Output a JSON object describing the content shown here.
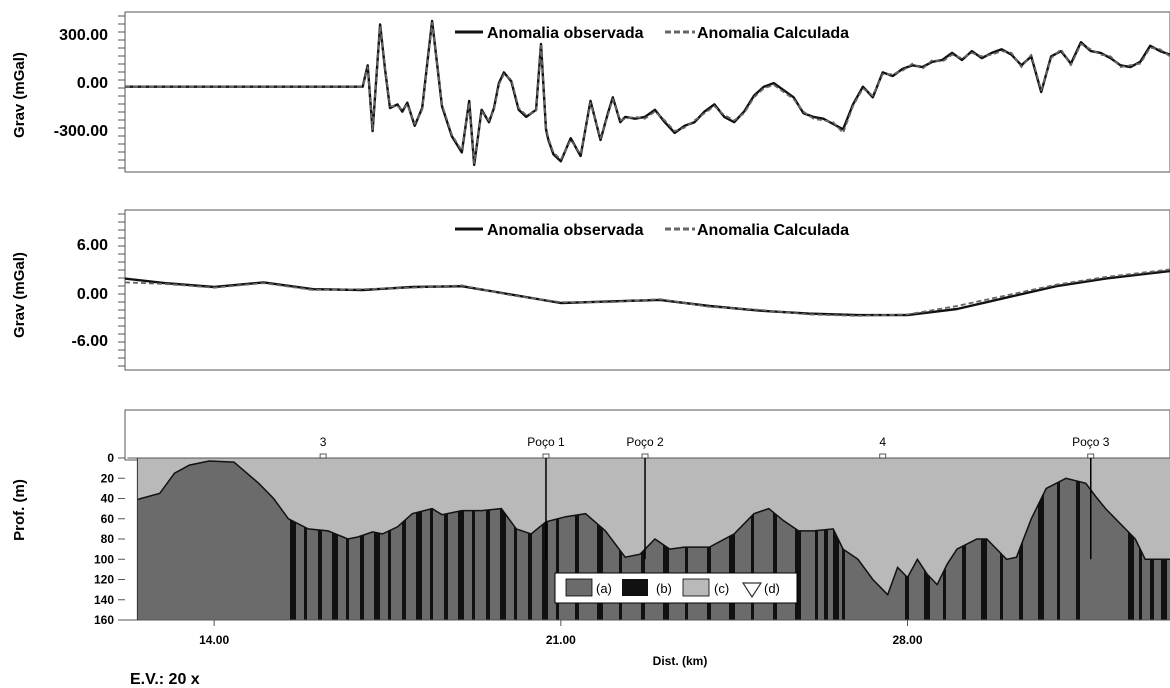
{
  "chart_data": [
    {
      "type": "line",
      "ylabel": "Grav (mGal)",
      "yticks": [
        "300.00",
        "0.00",
        "-300.00"
      ],
      "ylim": [
        -480,
        420
      ],
      "xlim": [
        12.2,
        33.3
      ],
      "series": [
        {
          "name": "Anomalia observada",
          "style": "solid",
          "color": "#111111",
          "x": [
            12.2,
            13,
            14,
            15,
            16,
            17.0,
            17.1,
            17.2,
            17.35,
            17.45,
            17.55,
            17.7,
            17.8,
            17.9,
            18.05,
            18.2,
            18.4,
            18.6,
            18.8,
            19.0,
            19.15,
            19.25,
            19.4,
            19.55,
            19.65,
            19.75,
            19.85,
            20.0,
            20.15,
            20.3,
            20.5,
            20.6,
            20.7,
            20.75,
            20.85,
            21.0,
            21.2,
            21.4,
            21.6,
            21.8,
            21.95,
            22.05,
            22.2,
            22.3,
            22.5,
            22.7,
            22.9,
            23.1,
            23.3,
            23.5,
            23.7,
            23.9,
            24.1,
            24.3,
            24.5,
            24.7,
            24.9,
            25.1,
            25.3,
            25.5,
            25.7,
            25.9,
            26.1,
            26.3,
            26.5,
            26.7,
            26.9,
            27.1,
            27.3,
            27.5,
            27.7,
            27.9,
            28.1,
            28.3,
            28.5,
            28.7,
            28.9,
            29.1,
            29.3,
            29.5,
            29.7,
            29.9,
            30.1,
            30.3,
            30.5,
            30.7,
            30.9,
            31.1,
            31.3,
            31.5,
            31.7,
            31.9,
            32.1,
            32.3,
            32.5,
            32.7,
            32.9,
            33.1,
            33.3
          ],
          "values": [
            0,
            0,
            0,
            0,
            0,
            0,
            120,
            -250,
            350,
            100,
            -120,
            -100,
            -140,
            -90,
            -220,
            -120,
            370,
            -110,
            -280,
            -370,
            -80,
            -440,
            -130,
            -200,
            -120,
            20,
            80,
            30,
            -130,
            -170,
            -130,
            240,
            -240,
            -300,
            -380,
            -420,
            -290,
            -390,
            -80,
            -300,
            -150,
            -60,
            -200,
            -170,
            -180,
            -170,
            -130,
            -200,
            -260,
            -220,
            -200,
            -140,
            -100,
            -170,
            -200,
            -140,
            -50,
            0,
            20,
            -20,
            -60,
            -150,
            -170,
            -180,
            -210,
            -240,
            -100,
            0,
            -60,
            80,
            60,
            100,
            120,
            110,
            140,
            150,
            190,
            150,
            200,
            160,
            190,
            210,
            180,
            120,
            170,
            -30,
            170,
            200,
            130,
            250,
            200,
            190,
            160,
            120,
            110,
            140,
            230,
            200,
            180
          ]
        },
        {
          "name": "Anomalia Calculada",
          "style": "dashed",
          "color": "#666666",
          "x": [
            12.2,
            13,
            14,
            15,
            16,
            17.0,
            17.1,
            17.2,
            17.35,
            17.45,
            17.55,
            17.7,
            17.8,
            17.9,
            18.05,
            18.2,
            18.4,
            18.6,
            18.8,
            19.0,
            19.15,
            19.25,
            19.4,
            19.55,
            19.65,
            19.75,
            19.85,
            20.0,
            20.15,
            20.3,
            20.5,
            20.6,
            20.7,
            20.75,
            20.85,
            21.0,
            21.2,
            21.4,
            21.6,
            21.8,
            21.95,
            22.05,
            22.2,
            22.3,
            22.5,
            22.7,
            22.9,
            23.1,
            23.3,
            23.5,
            23.7,
            23.9,
            24.1,
            24.3,
            24.5,
            24.7,
            24.9,
            25.1,
            25.3,
            25.5,
            25.7,
            25.9,
            26.1,
            26.3,
            26.5,
            26.7,
            26.9,
            27.1,
            27.3,
            27.5,
            27.7,
            27.9,
            28.1,
            28.3,
            28.5,
            28.7,
            28.9,
            29.1,
            29.3,
            29.5,
            29.7,
            29.9,
            30.1,
            30.3,
            30.5,
            30.7,
            30.9,
            31.1,
            31.3,
            31.5,
            31.7,
            31.9,
            32.1,
            32.3,
            32.5,
            32.7,
            32.9,
            33.1,
            33.3
          ],
          "values": [
            0,
            0,
            0,
            0,
            0,
            0,
            110,
            -240,
            340,
            110,
            -110,
            -110,
            -130,
            -100,
            -210,
            -130,
            360,
            -100,
            -270,
            -360,
            -90,
            -430,
            -140,
            -190,
            -130,
            10,
            70,
            40,
            -120,
            -160,
            -140,
            230,
            -230,
            -290,
            -370,
            -410,
            -300,
            -380,
            -90,
            -290,
            -160,
            -70,
            -190,
            -180,
            -170,
            -180,
            -140,
            -190,
            -250,
            -230,
            -190,
            -150,
            -110,
            -160,
            -190,
            -150,
            -60,
            -10,
            10,
            -30,
            -70,
            -140,
            -180,
            -190,
            -200,
            -260,
            -110,
            -10,
            -50,
            70,
            70,
            90,
            130,
            100,
            150,
            140,
            180,
            160,
            190,
            170,
            180,
            200,
            190,
            110,
            180,
            -20,
            160,
            210,
            120,
            240,
            210,
            180,
            170,
            110,
            120,
            130,
            220,
            210,
            170
          ]
        }
      ]
    },
    {
      "type": "line",
      "ylabel": "Grav (mGal)",
      "yticks": [
        "6.00",
        "0.00",
        "-6.00"
      ],
      "ylim": [
        -11,
        10
      ],
      "xlim": [
        12.2,
        33.3
      ],
      "series": [
        {
          "name": "Anomalia observada",
          "style": "solid",
          "color": "#111111",
          "x": [
            12.2,
            13,
            14,
            15,
            16,
            17,
            18,
            19,
            20,
            21,
            22,
            23,
            24,
            25,
            26,
            27,
            28,
            29,
            30,
            31,
            32,
            33.3
          ],
          "values": [
            1.0,
            0.4,
            -0.1,
            0.5,
            -0.4,
            -0.5,
            -0.1,
            0.0,
            -1.1,
            -2.2,
            -2.0,
            -1.8,
            -2.6,
            -3.2,
            -3.6,
            -3.8,
            -3.8,
            -3.0,
            -1.5,
            0.0,
            1.0,
            2.0
          ]
        },
        {
          "name": "Anomalia Calculada",
          "style": "dashed",
          "color": "#666666",
          "x": [
            12.2,
            13,
            14,
            15,
            16,
            17,
            18,
            19,
            20,
            21,
            22,
            23,
            24,
            25,
            26,
            27,
            28,
            29,
            30,
            31,
            32,
            33.3
          ],
          "values": [
            0.5,
            0.3,
            -0.2,
            0.4,
            -0.5,
            -0.4,
            -0.2,
            0.1,
            -1.2,
            -2.1,
            -2.1,
            -1.7,
            -2.7,
            -3.1,
            -3.7,
            -3.9,
            -3.7,
            -2.6,
            -1.2,
            0.2,
            1.2,
            2.2
          ]
        }
      ]
    },
    {
      "type": "area",
      "xlabel": "Dist. (km)",
      "ylabel": "Prof. (m)",
      "xticks": [
        "14.00",
        "21.00",
        "28.00"
      ],
      "xtick_values": [
        14,
        21,
        28
      ],
      "yticks": [
        "0",
        "20",
        "40",
        "60",
        "80",
        "100",
        "120",
        "140",
        "160"
      ],
      "ylim": [
        160,
        0
      ],
      "xlim": [
        12.2,
        33.3
      ],
      "wells": [
        {
          "label": "3",
          "x": 16.2
        },
        {
          "label": "Poço 1",
          "x": 20.7,
          "depth": 100
        },
        {
          "label": "Poço 2",
          "x": 22.7,
          "depth": 100
        },
        {
          "label": "4",
          "x": 27.5
        },
        {
          "label": "Poço 3",
          "x": 31.7,
          "depth": 100
        }
      ],
      "basement_profile": {
        "x": [
          12.45,
          12.9,
          13.2,
          13.5,
          13.9,
          14.4,
          14.9,
          15.2,
          15.5,
          15.9,
          16.3,
          16.7,
          16.9,
          17.2,
          17.4,
          17.7,
          18.0,
          18.4,
          18.6,
          19.0,
          19.4,
          19.8,
          20.1,
          20.4,
          20.7,
          21.1,
          21.5,
          21.9,
          22.3,
          22.6,
          22.9,
          23.2,
          23.5,
          24.0,
          24.5,
          24.9,
          25.2,
          25.5,
          25.8,
          26.1,
          26.5,
          26.7,
          27.0,
          27.3,
          27.6,
          27.8,
          28.0,
          28.2,
          28.4,
          28.6,
          28.8,
          29.0,
          29.2,
          29.4,
          29.6,
          29.8,
          30.0,
          30.2,
          30.5,
          30.8,
          31.2,
          31.6,
          31.8,
          32.0,
          32.2,
          32.4,
          32.6,
          32.8
        ],
        "values": [
          41,
          35,
          15,
          7,
          3,
          4,
          25,
          40,
          60,
          70,
          72,
          80,
          78,
          73,
          75,
          68,
          55,
          50,
          56,
          52,
          52,
          50,
          70,
          75,
          63,
          58,
          55,
          72,
          98,
          95,
          80,
          90,
          88,
          88,
          75,
          55,
          50,
          62,
          72,
          72,
          70,
          90,
          100,
          120,
          135,
          108,
          118,
          100,
          115,
          125,
          105,
          90,
          85,
          80,
          80,
          90,
          100,
          98,
          60,
          30,
          20,
          25,
          38,
          50,
          60,
          70,
          80,
          100
        ],
        "regions_note": "area below basement profile shaded (a) dark gray, (b) black bands; area above profile (c) light gray"
      },
      "legend": [
        {
          "key": "(a)",
          "color": "#6b6b6b"
        },
        {
          "key": "(b)",
          "color": "#111111"
        },
        {
          "key": "(c)",
          "color": "#b9b9b9"
        },
        {
          "key": "(d)",
          "icon": "triangle-down-icon"
        }
      ]
    }
  ],
  "footer": {
    "ev_label": "E.V.: 20 x"
  }
}
